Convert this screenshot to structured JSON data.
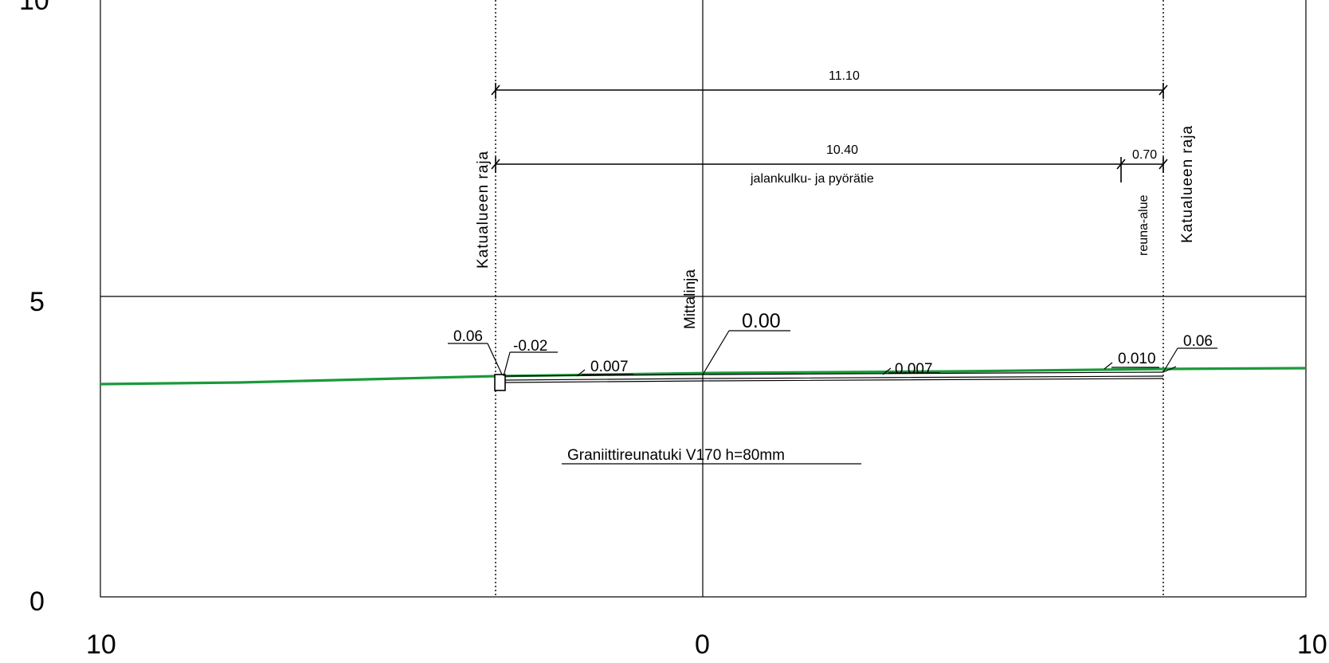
{
  "axes": {
    "y_ticks": [
      "10",
      "5",
      "0"
    ],
    "x_ticks": [
      "10",
      "0",
      "10"
    ]
  },
  "boundaries": {
    "left_label": "Katualueen raja",
    "right_label": "Katualueen raja",
    "center_label": "Mittalinja"
  },
  "dimensions": {
    "total_width": "11.10",
    "path_width": "10.40",
    "edge_width": "0.70",
    "path_label": "jalankulku- ja pyörätie",
    "edge_label": "reuna-alue"
  },
  "annotations": {
    "left_height": "0.06",
    "curb_height": "-0.02",
    "slope_left": "0.007",
    "center_height": "0.00",
    "slope_right": "0.007",
    "slope_edge": "0.010",
    "right_height": "0.06",
    "curb_note": "Graniittireunatuki V170 h=80mm"
  },
  "colors": {
    "ground": "#1a9a3a",
    "lines": "#000000"
  }
}
